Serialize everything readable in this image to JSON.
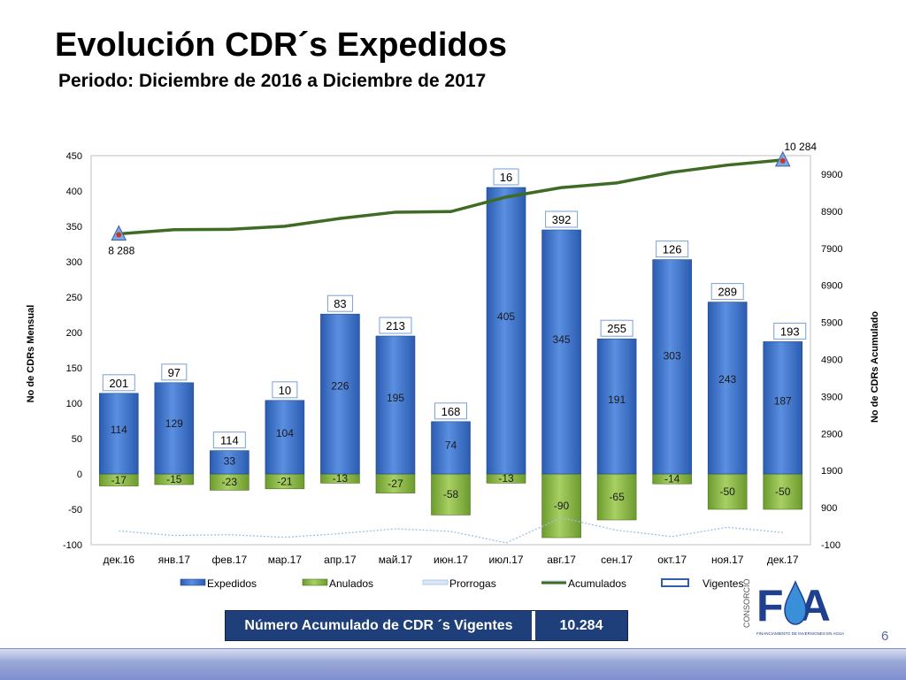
{
  "slide": {
    "title": "Evolución CDR´s Expedidos",
    "subtitle": "Periodo: Diciembre de 2016 a Diciembre de 2017",
    "page_number": "6"
  },
  "summary": {
    "label": "Número Acumulado de CDR ´s Vigentes",
    "value": "10.284"
  },
  "logo": {
    "side_text": "CONSORCIO",
    "letters": "FA",
    "tagline": "FINANCIAMIENTO DE INVERSIONES EN AGUA"
  },
  "colors": {
    "expedidos": "#3f73cc",
    "anulados": "#8dbd47",
    "prorrogas": "#9fc0e8",
    "acumulados": "#3f6b25",
    "vigentes": "#2e5fa8",
    "marker": "#c0392b",
    "summary_bg": "#1f3f7a"
  },
  "chart_data": {
    "type": "bar",
    "categories": [
      "дек.16",
      "янв.17",
      "фев.17",
      "мар.17",
      "апр.17",
      "май.17",
      "июн.17",
      "июл.17",
      "авг.17",
      "сен.17",
      "окт.17",
      "ноя.17",
      "дек.17"
    ],
    "ylabel": "No de CDRs Mensual",
    "y2label": "No de CDRs Acumulado",
    "ylim": [
      -100,
      450
    ],
    "yticks": [
      -100,
      -50,
      0,
      50,
      100,
      150,
      200,
      250,
      300,
      350,
      400,
      450
    ],
    "y2lim": [
      -100,
      10400
    ],
    "y2ticks": [
      -100,
      900,
      1900,
      2900,
      3900,
      4900,
      5900,
      6900,
      7900,
      8900,
      9900
    ],
    "series": [
      {
        "name": "Expedidos",
        "type": "bar",
        "values": [
          114,
          129,
          33,
          104,
          226,
          195,
          74,
          405,
          345,
          191,
          303,
          243,
          187
        ]
      },
      {
        "name": "Anulados",
        "type": "bar",
        "values": [
          -17,
          -15,
          -23,
          -21,
          -13,
          -27,
          -58,
          -13,
          -90,
          -65,
          -14,
          -50,
          -50
        ]
      },
      {
        "name": "Prorrogas",
        "type": "line",
        "axis": "right",
        "values": [
          270,
          150,
          170,
          100,
          200,
          330,
          260,
          -50,
          630,
          290,
          120,
          370,
          230
        ]
      },
      {
        "name": "Acumulados",
        "type": "line",
        "axis": "right",
        "values": [
          8288,
          8400,
          8410,
          8493,
          8706,
          8874,
          8890,
          9282,
          9537,
          9663,
          9952,
          10145,
          10284
        ]
      },
      {
        "name": "Vigentes",
        "type": "box-label",
        "values": [
          201,
          97,
          114,
          10,
          83,
          213,
          168,
          16,
          392,
          255,
          126,
          289,
          193
        ]
      }
    ],
    "acumulados_labels": [
      "8 288",
      "10 284"
    ],
    "legend": [
      "Expedidos",
      "Anulados",
      "Prorrogas",
      "Acumulados",
      "Vigentes"
    ]
  }
}
